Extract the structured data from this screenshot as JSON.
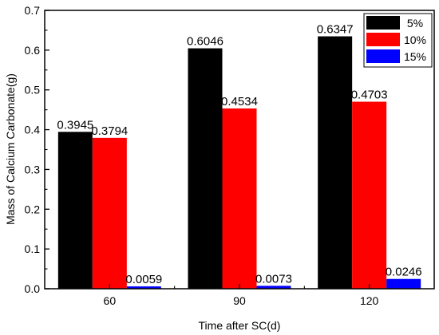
{
  "chart_data": {
    "type": "bar",
    "xlabel": "Time after SC(d)",
    "ylabel": "Mass of Calcium Carbonate(g)",
    "categories": [
      "60",
      "90",
      "120"
    ],
    "ylim": [
      0,
      0.7
    ],
    "yticks": [
      "0.0",
      "0.1",
      "0.2",
      "0.3",
      "0.4",
      "0.5",
      "0.6",
      "0.7"
    ],
    "grid": false,
    "legend_position": "top-right",
    "series": [
      {
        "name": "5%",
        "color": "#000000",
        "values": [
          0.3945,
          0.6046,
          0.6347
        ],
        "labels": [
          "0.3945",
          "0.6046",
          "0.6347"
        ]
      },
      {
        "name": "10%",
        "color": "#ff0000",
        "values": [
          0.3794,
          0.4534,
          0.4703
        ],
        "labels": [
          "0.3794",
          "0.4534",
          "0.4703"
        ]
      },
      {
        "name": "15%",
        "color": "#0000ff",
        "values": [
          0.0059,
          0.0073,
          0.0246
        ],
        "labels": [
          "0.0059",
          "0.0073",
          "0.0246"
        ]
      }
    ]
  }
}
